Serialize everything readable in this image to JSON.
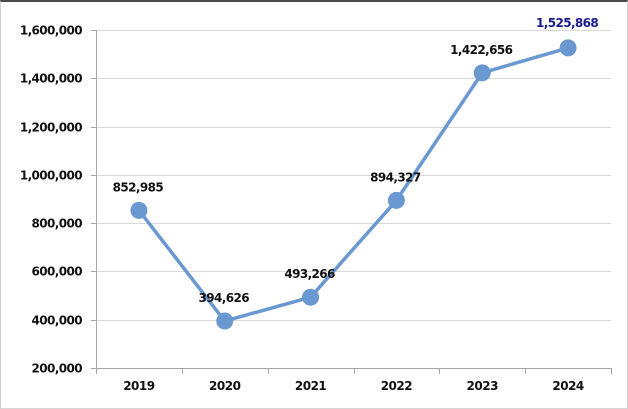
{
  "chart_data": {
    "type": "line",
    "title": "",
    "xlabel": "",
    "ylabel": "",
    "categories": [
      "2019",
      "2020",
      "2021",
      "2022",
      "2023",
      "2024"
    ],
    "series": [
      {
        "name": "",
        "values": [
          852985,
          394626,
          493266,
          894327,
          1422656,
          1525868
        ],
        "color": "#6a98d0"
      }
    ],
    "data_labels": [
      "852,985",
      "394,626",
      "493,266",
      "894,327",
      "1,422,656",
      "1,525,868"
    ],
    "highlight_label_color": "#1a1a8c",
    "ylim": [
      200000,
      1600000
    ],
    "yticks": [
      200000,
      400000,
      600000,
      800000,
      1000000,
      1200000,
      1400000,
      1600000
    ],
    "ytick_labels": [
      "200,000",
      "400,000",
      "600,000",
      "800,000",
      "1,000,000",
      "1,200,000",
      "1,400,000",
      "1,600,000"
    ],
    "grid": true,
    "legend": "none"
  }
}
